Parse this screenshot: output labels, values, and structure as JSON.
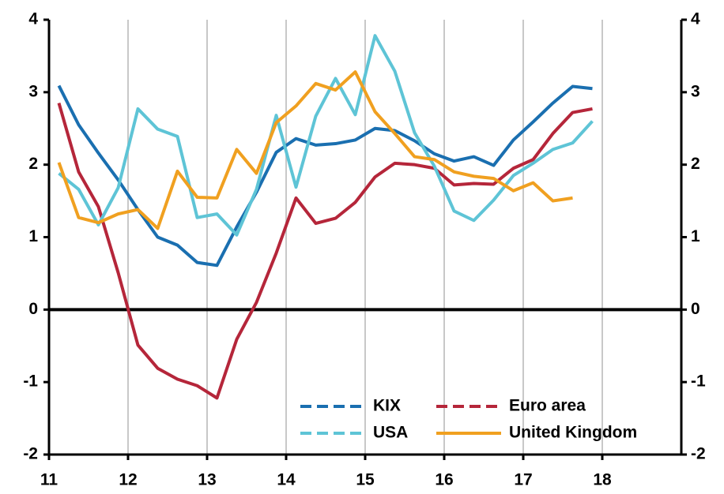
{
  "chart_data": {
    "type": "line",
    "x": [
      11.125,
      11.375,
      11.625,
      11.875,
      12.125,
      12.375,
      12.625,
      12.875,
      13.125,
      13.375,
      13.625,
      13.875,
      14.125,
      14.375,
      14.625,
      14.875,
      15.125,
      15.375,
      15.625,
      15.875,
      16.125,
      16.375,
      16.625,
      16.875,
      17.125,
      17.375,
      17.625,
      17.875
    ],
    "series": [
      {
        "name": "KIX",
        "color": "#1a6fb0",
        "dashed_legend": true,
        "values": [
          3.09,
          2.55,
          2.16,
          1.79,
          1.38,
          1.0,
          0.89,
          0.65,
          0.61,
          1.14,
          1.62,
          2.17,
          2.36,
          2.27,
          2.29,
          2.34,
          2.5,
          2.47,
          2.33,
          2.15,
          2.05,
          2.11,
          1.99,
          2.34,
          2.59,
          2.85,
          3.08,
          3.05
        ]
      },
      {
        "name": "Euro area",
        "color": "#b5263a",
        "dashed_legend": true,
        "values": [
          2.85,
          1.9,
          1.42,
          0.51,
          -0.49,
          -0.81,
          -0.96,
          -1.05,
          -1.22,
          -0.41,
          0.1,
          0.78,
          1.54,
          1.19,
          1.26,
          1.48,
          1.83,
          2.02,
          2.0,
          1.95,
          1.72,
          1.74,
          1.73,
          1.95,
          2.07,
          2.43,
          2.72,
          2.77
        ]
      },
      {
        "name": "USA",
        "color": "#5ec4d6",
        "dashed_legend": true,
        "values": [
          1.88,
          1.66,
          1.17,
          1.68,
          2.77,
          2.49,
          2.39,
          1.27,
          1.32,
          1.03,
          1.66,
          2.68,
          1.69,
          2.67,
          3.19,
          2.69,
          3.78,
          3.29,
          2.44,
          1.98,
          1.36,
          1.23,
          1.51,
          1.85,
          2.02,
          2.21,
          2.3,
          2.6
        ]
      },
      {
        "name": "United Kingdom",
        "color": "#f0a020",
        "dashed_legend": false,
        "values": [
          2.03,
          1.27,
          1.2,
          1.32,
          1.38,
          1.12,
          1.91,
          1.55,
          1.54,
          2.21,
          1.88,
          2.58,
          2.81,
          3.12,
          3.03,
          3.28,
          2.73,
          2.43,
          2.11,
          2.07,
          1.9,
          1.84,
          1.81,
          1.64,
          1.75,
          1.5,
          1.54,
          null
        ]
      }
    ],
    "xlim": [
      11,
      19
    ],
    "xticks": [
      11,
      12,
      13,
      14,
      15,
      16,
      17,
      18
    ],
    "ylim": [
      -2,
      4
    ],
    "yticks": [
      -2,
      -1,
      0,
      1,
      2,
      3,
      4
    ],
    "y2lim": [
      -2,
      4
    ],
    "y2ticks": [
      -2,
      -1,
      0,
      1,
      2,
      3,
      4
    ],
    "grid": "x",
    "legend": "lower right"
  }
}
